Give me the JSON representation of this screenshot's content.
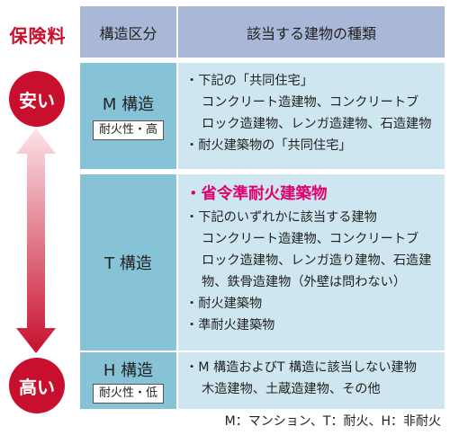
{
  "title": "保険料",
  "badges": {
    "low": "安い",
    "high": "高い"
  },
  "header": {
    "kubun": "構造区分",
    "shurui": "該当する建物の種類"
  },
  "rows": [
    {
      "name": "M 構造",
      "sub": "耐火性・高",
      "lines": [
        "・下記の「共同住宅」",
        "コンクリート造建物、コンクリートブ",
        "ロック造建物、レンガ造建物、石造建物",
        "・耐火建築物の「共同住宅」"
      ]
    },
    {
      "name": "T 構造",
      "emph": "・省令準耐火建築物",
      "lines": [
        "・下記のいずれかに該当する建物",
        "コンクリート造建物、コンクリートブ",
        "ロック造建物、レンガ造り建物、石造建",
        "物、鉄骨造建物（外壁は問わない）",
        "・耐火建築物",
        "・準耐火建築物"
      ]
    },
    {
      "name": "H 構造",
      "sub": "耐火性・低",
      "lines": [
        "・M 構造およびT 構造に該当しない建物",
        "木造建物、土蔵造建物、その他"
      ]
    }
  ],
  "legend": "M：マンション、T：耐火、H：非耐火",
  "colors": {
    "accent": "#c8102e",
    "header": "#a9b8d7",
    "struct": "#87c3d6",
    "desc": "#cde6ef",
    "emph": "#e0006e"
  }
}
